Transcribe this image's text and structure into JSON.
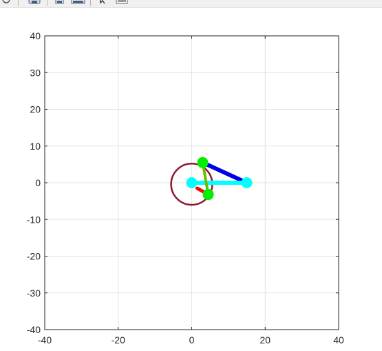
{
  "toolbar": {
    "buttons": [
      {
        "name": "rotate-3d-button",
        "icon": "rotate-3d-icon"
      },
      {
        "name": "pan-button",
        "icon": "pan-hand-icon"
      },
      {
        "name": "zoom-in-button",
        "icon": "zoom-in-icon"
      },
      {
        "name": "zoom-out-button",
        "icon": "zoom-out-icon"
      },
      {
        "name": "data-cursor-button",
        "icon": "data-cursor-icon"
      },
      {
        "name": "brush-button",
        "icon": "brush-icon"
      }
    ]
  },
  "chart_data": {
    "type": "line",
    "xlim": [
      -40,
      40
    ],
    "ylim": [
      -40,
      40
    ],
    "grid": true,
    "x_ticks": [
      -40,
      -20,
      0,
      20,
      40
    ],
    "x_tick_labels": [
      "-40",
      "-20",
      "0",
      "20",
      "40"
    ],
    "y_ticks": [
      40,
      30,
      20,
      10,
      0,
      -10,
      -20,
      -30,
      -40
    ],
    "y_tick_labels": [
      "40",
      "30",
      "20",
      "10",
      "0",
      "-10",
      "-20",
      "-30",
      "-40"
    ],
    "colors": {
      "circle": "#8b1a2e",
      "crank": "#ff0000",
      "coupler": "#0000e6",
      "rocker": "#6bbf00",
      "ground": "#00ffff",
      "joint_green": "#00ee00",
      "joint_cyan": "#00ffff",
      "axes": "#262626",
      "grid": "#e3e3e3"
    },
    "circle": {
      "cx": 0,
      "cy": -0.4,
      "r": 5.6
    },
    "ground_link": [
      [
        0,
        0
      ],
      [
        15,
        0
      ]
    ],
    "crank_link": [
      [
        1.5,
        -1.5
      ],
      [
        4.5,
        -3.2
      ]
    ],
    "coupler_link": [
      [
        3,
        5.5
      ],
      [
        15,
        0
      ]
    ],
    "rocker_link": [
      [
        3,
        5.5
      ],
      [
        4.5,
        -3.2
      ]
    ],
    "joints_green": [
      [
        3,
        5.5
      ],
      [
        4.5,
        -3.2
      ]
    ],
    "joints_cyan": [
      [
        0,
        0
      ],
      [
        15,
        0
      ]
    ]
  }
}
